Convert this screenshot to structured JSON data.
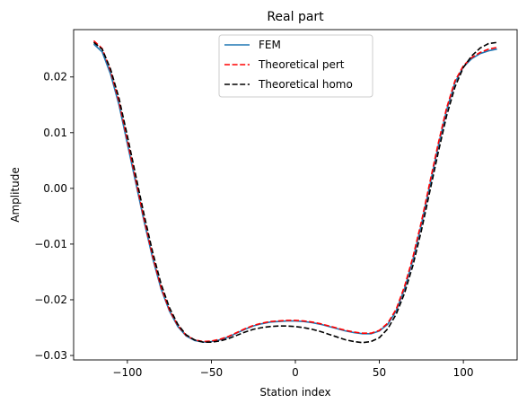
{
  "chart_data": {
    "type": "line",
    "title": "Real part",
    "xlabel": "Station index",
    "ylabel": "Amplitude",
    "xlim": [
      -132,
      132
    ],
    "ylim": [
      -0.0308,
      0.0285
    ],
    "xticks": [
      -100,
      -50,
      0,
      50,
      100
    ],
    "xtick_labels": [
      "−100",
      "−50",
      "0",
      "50",
      "100"
    ],
    "yticks": [
      -0.03,
      -0.02,
      -0.01,
      0.0,
      0.01,
      0.02
    ],
    "ytick_labels": [
      "−0.03",
      "−0.02",
      "−0.01",
      "0.00",
      "0.01",
      "0.02"
    ],
    "grid": false,
    "legend_position": "upper center",
    "series": [
      {
        "name": "FEM",
        "color": "#1f77b4",
        "style": "solid",
        "x": [
          -120,
          -115,
          -110,
          -105,
          -100,
          -95,
          -90,
          -85,
          -80,
          -75,
          -70,
          -65,
          -60,
          -55,
          -50,
          -45,
          -40,
          -35,
          -30,
          -25,
          -20,
          -15,
          -10,
          -5,
          0,
          5,
          10,
          15,
          20,
          25,
          30,
          35,
          40,
          45,
          50,
          55,
          60,
          65,
          70,
          75,
          80,
          85,
          90,
          95,
          100,
          105,
          110,
          115,
          120
        ],
        "y": [
          0.0259,
          0.0245,
          0.0205,
          0.015,
          0.008,
          0.001,
          -0.006,
          -0.0125,
          -0.018,
          -0.022,
          -0.0248,
          -0.0265,
          -0.0273,
          -0.0276,
          -0.0275,
          -0.0272,
          -0.0267,
          -0.026,
          -0.0253,
          -0.0247,
          -0.0243,
          -0.024,
          -0.0239,
          -0.0238,
          -0.0238,
          -0.0239,
          -0.0241,
          -0.0244,
          -0.0248,
          -0.0252,
          -0.0256,
          -0.0259,
          -0.0261,
          -0.0261,
          -0.0256,
          -0.0244,
          -0.022,
          -0.018,
          -0.0128,
          -0.0065,
          0.0005,
          0.0075,
          0.014,
          0.019,
          0.0218,
          0.0233,
          0.0242,
          0.0247,
          0.025
        ]
      },
      {
        "name": "Theoretical pert",
        "color": "#ff0000",
        "style": "dashed",
        "x": [
          -120,
          -115,
          -110,
          -105,
          -100,
          -95,
          -90,
          -85,
          -80,
          -75,
          -70,
          -65,
          -60,
          -55,
          -50,
          -45,
          -40,
          -35,
          -30,
          -25,
          -20,
          -15,
          -10,
          -5,
          0,
          5,
          10,
          15,
          20,
          25,
          30,
          35,
          40,
          45,
          50,
          55,
          60,
          65,
          70,
          75,
          80,
          85,
          90,
          95,
          100,
          105,
          110,
          115,
          120
        ],
        "y": [
          0.0265,
          0.0251,
          0.0211,
          0.0156,
          0.0086,
          0.0015,
          -0.0056,
          -0.0121,
          -0.0177,
          -0.0218,
          -0.0246,
          -0.0264,
          -0.0272,
          -0.0275,
          -0.0274,
          -0.0271,
          -0.0266,
          -0.0259,
          -0.0252,
          -0.0246,
          -0.0242,
          -0.0239,
          -0.0238,
          -0.0237,
          -0.0237,
          -0.0238,
          -0.024,
          -0.0243,
          -0.0247,
          -0.0251,
          -0.0255,
          -0.0258,
          -0.026,
          -0.026,
          -0.0255,
          -0.0242,
          -0.0217,
          -0.0176,
          -0.0123,
          -0.006,
          0.001,
          0.008,
          0.0144,
          0.0193,
          0.022,
          0.0235,
          0.0244,
          0.025,
          0.0253
        ]
      },
      {
        "name": "Theoretical homo",
        "color": "#000000",
        "style": "dashed",
        "x": [
          -120,
          -115,
          -110,
          -105,
          -100,
          -95,
          -90,
          -85,
          -80,
          -75,
          -70,
          -65,
          -60,
          -55,
          -50,
          -45,
          -40,
          -35,
          -30,
          -25,
          -20,
          -15,
          -10,
          -5,
          0,
          5,
          10,
          15,
          20,
          25,
          30,
          35,
          40,
          45,
          50,
          55,
          60,
          65,
          70,
          75,
          80,
          85,
          90,
          95,
          100,
          105,
          110,
          115,
          120
        ],
        "y": [
          0.0262,
          0.025,
          0.0214,
          0.0162,
          0.0094,
          0.0023,
          -0.0048,
          -0.0114,
          -0.0171,
          -0.0214,
          -0.0244,
          -0.0263,
          -0.0272,
          -0.0276,
          -0.0276,
          -0.0274,
          -0.027,
          -0.0264,
          -0.0258,
          -0.0253,
          -0.025,
          -0.0248,
          -0.0247,
          -0.0247,
          -0.0248,
          -0.025,
          -0.0253,
          -0.0257,
          -0.0262,
          -0.0267,
          -0.0272,
          -0.0275,
          -0.0277,
          -0.0275,
          -0.0268,
          -0.0252,
          -0.0226,
          -0.0188,
          -0.0138,
          -0.0076,
          -0.0006,
          0.0064,
          0.013,
          0.0182,
          0.0217,
          0.0238,
          0.0252,
          0.026,
          0.0262
        ]
      }
    ]
  }
}
